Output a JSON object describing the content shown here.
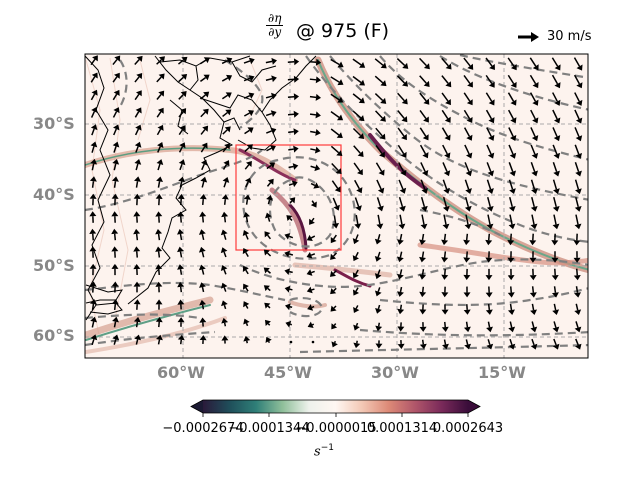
{
  "title": {
    "frac_num": "∂η",
    "frac_den": "∂y",
    "text": "@ 975 (F)"
  },
  "quiver_key": {
    "label": "30 m/s",
    "color": "#000000"
  },
  "map": {
    "lat_labels": [
      "30°S",
      "40°S",
      "50°S",
      "60°S"
    ],
    "lon_labels": [
      "60°W",
      "45°W",
      "30°W",
      "15°W"
    ],
    "gridline_style": "dashed",
    "highlight_box": {
      "color": "#ff3b3b"
    },
    "contour_color": "#808080",
    "coast_color": "#000000"
  },
  "colorbar": {
    "ticks": [
      "−0.0002674",
      "−0.0001344",
      "−0.0000015",
      "0.0001314",
      "0.0002643"
    ],
    "label_base": "s",
    "label_exp": "−1",
    "colors": [
      "#2a1a3a",
      "#1f4e5a",
      "#2f7f78",
      "#8fbf9a",
      "#eef2ec",
      "#fff7f2",
      "#f3c8b5",
      "#dd8a77",
      "#b0566a",
      "#7a2a5a",
      "#3a0d3a"
    ]
  },
  "chart_data": {
    "type": "heatmap",
    "title": "∂η/∂y @ 975 (F)",
    "variable": "∂η/∂y",
    "level": "975",
    "units": "s^-1",
    "colorbar_range": [
      -0.0002674,
      0.0002643
    ],
    "colorbar_ticks": [
      -0.0002674,
      -0.0001344,
      -1.5e-06,
      0.0001314,
      0.0002643
    ],
    "x_ticks": [
      "60°W",
      "45°W",
      "30°W",
      "15°W"
    ],
    "y_ticks": [
      "30°S",
      "40°S",
      "50°S",
      "60°S"
    ],
    "grid": true,
    "overlays": [
      "wind vectors",
      "dashed contours",
      "coastlines",
      "highlight box"
    ]
  }
}
